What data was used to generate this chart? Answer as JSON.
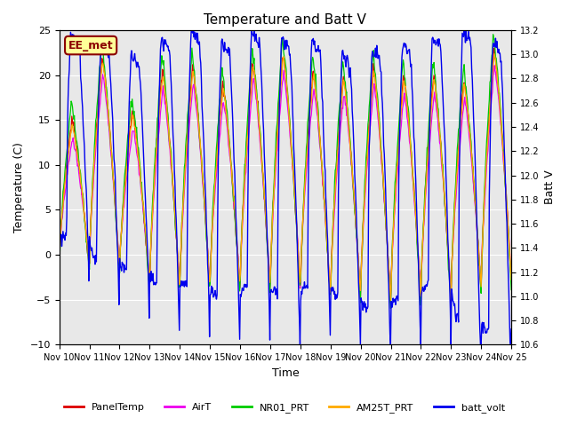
{
  "title": "Temperature and Batt V",
  "xlabel": "Time",
  "ylabel_left": "Temperature (C)",
  "ylabel_right": "Batt V",
  "ylim_left": [
    -10,
    25
  ],
  "ylim_right": [
    10.6,
    13.2
  ],
  "yticks_left": [
    -10,
    -5,
    0,
    5,
    10,
    15,
    20,
    25
  ],
  "yticks_right": [
    10.6,
    10.8,
    11.0,
    11.2,
    11.4,
    11.6,
    11.8,
    12.0,
    12.2,
    12.4,
    12.6,
    12.8,
    13.0,
    13.2
  ],
  "xtick_labels": [
    "Nov 10",
    "Nov 11",
    "Nov 12",
    "Nov 13",
    "Nov 14",
    "Nov 15",
    "Nov 16",
    "Nov 17",
    "Nov 18",
    "Nov 19",
    "Nov 20",
    "Nov 21",
    "Nov 22",
    "Nov 23",
    "Nov 24",
    "Nov 25"
  ],
  "annotation_text": "EE_met",
  "annotation_color": "#8B0000",
  "annotation_bg": "#FFFF99",
  "colors": {
    "PanelTemp": "#DD0000",
    "AirT": "#EE00EE",
    "NR01_PRT": "#00CC00",
    "AM25T_PRT": "#FFAA00",
    "batt_volt": "#0000EE"
  },
  "background_color": "#FFFFFF",
  "plot_bg_color": "#E8E8E8",
  "n_days": 15
}
